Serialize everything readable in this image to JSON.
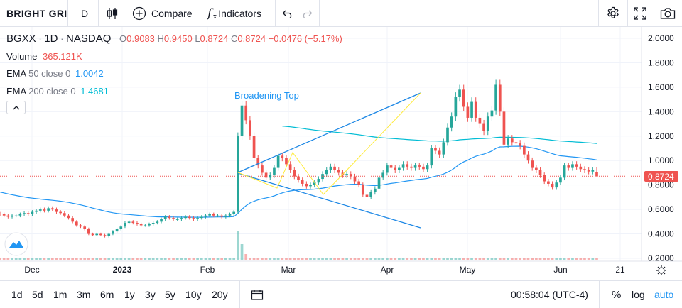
{
  "toolbar": {
    "symbol_search": "BRIGHT GRI",
    "interval": "D",
    "compare_label": "Compare",
    "indicators_label": "Indicators"
  },
  "legend": {
    "ticker": "BGXX",
    "interval": "1D",
    "exchange": "NASDAQ",
    "o_label": "O",
    "o_value": "0.9083",
    "h_label": "H",
    "h_value": "0.9450",
    "l_label": "L",
    "l_value": "0.8724",
    "c_label": "C",
    "c_value": "0.8724",
    "change": "−0.0476 (−5.17%)",
    "volume_label": "Volume",
    "volume_value": "365.121K",
    "ema50_label": "EMA",
    "ema50_params": "50 close 0",
    "ema50_value": "1.0042",
    "ema200_label": "EMA",
    "ema200_params": "200 close 0",
    "ema200_value": "1.4681"
  },
  "annotation": "Broadening Top",
  "price_scale": {
    "ticks": [
      "2.0000",
      "1.8000",
      "1.6000",
      "1.4000",
      "1.2000",
      "1.0000",
      "0.8000",
      "0.6000",
      "0.4000",
      "0.2000"
    ],
    "last_price": "0.8724"
  },
  "time_scale": {
    "labels": [
      "Dec",
      "2023",
      "Feb",
      "Mar",
      "Apr",
      "May",
      "Jun",
      "21"
    ]
  },
  "bottom": {
    "ranges": [
      "1d",
      "5d",
      "1m",
      "3m",
      "6m",
      "1y",
      "3y",
      "5y",
      "10y",
      "20y"
    ],
    "clock": "00:58:04 (UTC-4)",
    "percent": "%",
    "log": "log",
    "auto": "auto"
  },
  "colors": {
    "up": "#26a69a",
    "down": "#ef5350",
    "ema50": "#2196f3",
    "ema200": "#00bcd4",
    "pattern": "#1e88e5",
    "pattern_inner": "#ffeb3b",
    "accent": "#2196f3"
  },
  "chart_data": {
    "type": "candlestick",
    "ohlc_last": {
      "o": 0.9083,
      "h": 0.945,
      "l": 0.8724,
      "c": 0.8724
    },
    "ylim": [
      0.2,
      2.0
    ],
    "closes": [
      0.56,
      0.55,
      0.54,
      0.55,
      0.55,
      0.56,
      0.57,
      0.56,
      0.58,
      0.59,
      0.6,
      0.59,
      0.61,
      0.6,
      0.58,
      0.57,
      0.55,
      0.53,
      0.5,
      0.47,
      0.46,
      0.44,
      0.4,
      0.39,
      0.4,
      0.39,
      0.38,
      0.4,
      0.42,
      0.44,
      0.46,
      0.49,
      0.5,
      0.49,
      0.48,
      0.47,
      0.47,
      0.48,
      0.49,
      0.5,
      0.52,
      0.54,
      0.53,
      0.52,
      0.52,
      0.53,
      0.54,
      0.53,
      0.52,
      0.53,
      0.54,
      0.55,
      0.56,
      0.55,
      0.55,
      0.54,
      0.55,
      0.56,
      0.58,
      1.2,
      1.45,
      1.33,
      1.2,
      1.02,
      0.96,
      0.9,
      0.86,
      0.88,
      0.94,
      1.04,
      1.02,
      0.97,
      0.92,
      0.87,
      0.84,
      0.81,
      0.79,
      0.8,
      0.82,
      0.85,
      0.89,
      0.92,
      0.95,
      0.92,
      0.9,
      0.88,
      0.89,
      0.87,
      0.83,
      0.8,
      0.72,
      0.7,
      0.74,
      0.77,
      0.86,
      0.9,
      0.96,
      0.94,
      0.92,
      0.94,
      0.97,
      0.95,
      0.94,
      0.96,
      0.95,
      0.93,
      0.96,
      1.1,
      1.08,
      1.05,
      1.15,
      1.27,
      1.36,
      1.52,
      1.58,
      1.44,
      1.35,
      1.48,
      1.35,
      1.3,
      1.24,
      1.36,
      1.41,
      1.62,
      1.4,
      1.13,
      1.18,
      1.15,
      1.14,
      1.12,
      1.05,
      1.0,
      0.94,
      0.92,
      0.88,
      0.83,
      0.81,
      0.78,
      0.82,
      0.86,
      0.96,
      0.94,
      0.97,
      0.95,
      0.93,
      0.92,
      0.91,
      0.92,
      0.87
    ]
  }
}
